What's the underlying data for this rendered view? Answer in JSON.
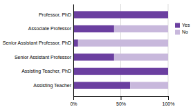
{
  "chart_data": {
    "type": "bar",
    "orientation": "horizontal",
    "stacked": true,
    "categories": [
      "Assisting Teacher",
      "Assisting Teacher, PhD",
      "Senior Assistant Professor",
      "Senior Assistant Professor, PhD",
      "Associate Professor",
      "Professor, PhD"
    ],
    "series": [
      {
        "name": "Yes",
        "color": "#6B3FA0",
        "values": [
          60,
          100,
          43,
          5,
          43,
          100
        ]
      },
      {
        "name": "No",
        "color": "#C8B8DC",
        "values": [
          40,
          0,
          57,
          95,
          57,
          0
        ]
      }
    ],
    "xlim": [
      0,
      100
    ],
    "xticks": [
      {
        "value": 0,
        "label": "0%"
      },
      {
        "value": 50,
        "label": "50%"
      },
      {
        "value": 100,
        "label": "100%"
      }
    ],
    "grid": true,
    "legend": "right"
  }
}
